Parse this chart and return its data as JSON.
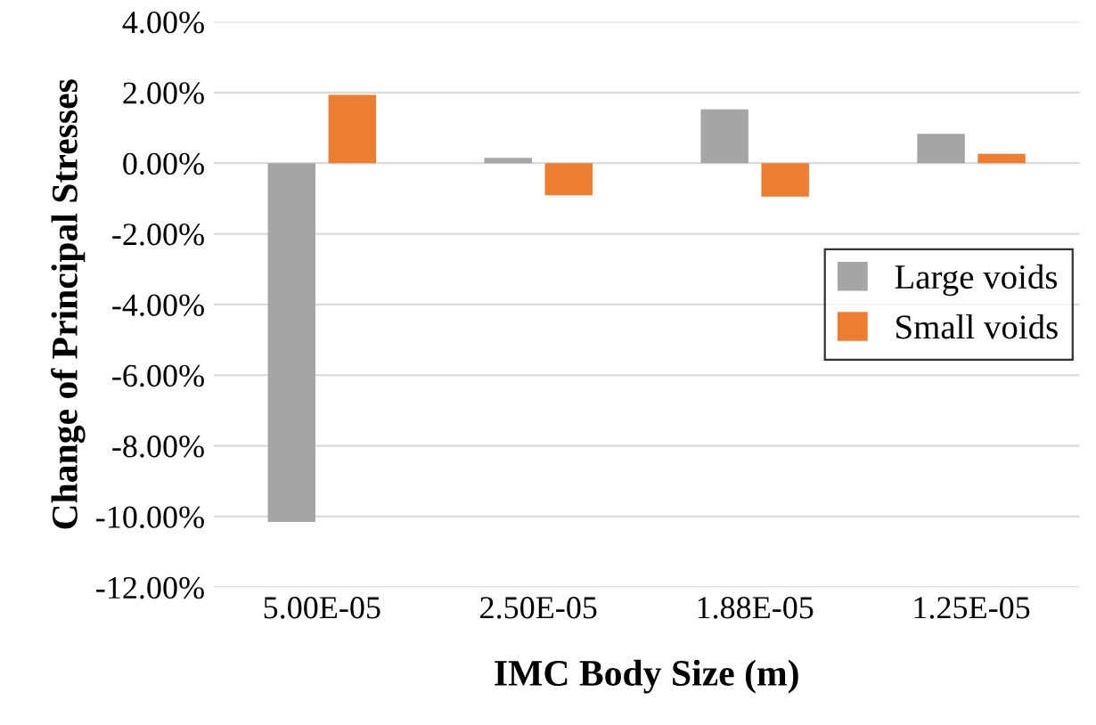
{
  "chart_data": {
    "type": "bar",
    "xlabel": "IMC Body Size (m)",
    "ylabel": "Change of Principal Stresses",
    "categories": [
      "5.00E-05",
      "2.50E-05",
      "1.88E-05",
      "1.25E-05"
    ],
    "series": [
      {
        "name": "Large voids",
        "color": "#a5a5a5",
        "values": [
          -10.15,
          0.15,
          1.52,
          0.83
        ]
      },
      {
        "name": "Small voids",
        "color": "#ed7d31",
        "values": [
          1.93,
          -0.91,
          -0.95,
          0.26
        ]
      }
    ],
    "ylim": [
      -12,
      4
    ],
    "yticks": [
      {
        "value": -12,
        "label": "-12.00%"
      },
      {
        "value": -10,
        "label": "-10.00%"
      },
      {
        "value": -8,
        "label": "-8.00%"
      },
      {
        "value": -6,
        "label": "-6.00%"
      },
      {
        "value": -4,
        "label": "-4.00%"
      },
      {
        "value": -2,
        "label": "-2.00%"
      },
      {
        "value": 0,
        "label": "0.00%"
      },
      {
        "value": 2,
        "label": "2.00%"
      },
      {
        "value": 4,
        "label": "4.00%"
      }
    ],
    "grid": "y",
    "legend": "center right"
  }
}
